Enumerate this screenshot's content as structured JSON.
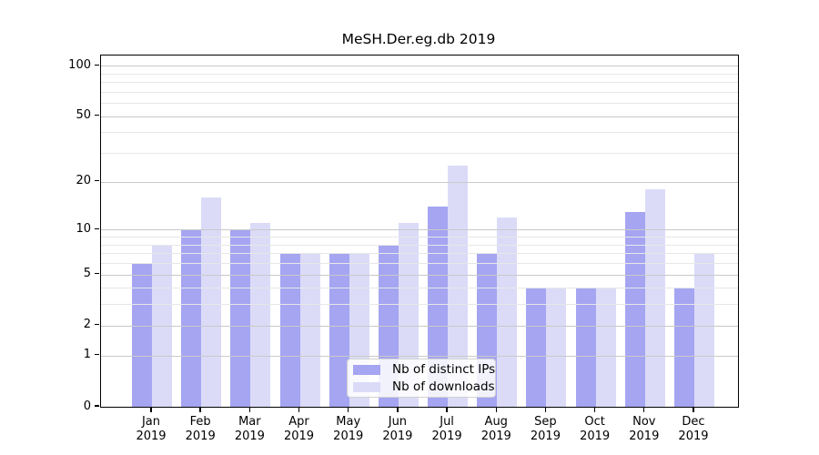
{
  "chart_data": {
    "type": "bar",
    "title": "MeSH.Der.eg.db 2019",
    "categories": [
      "Jan",
      "Feb",
      "Mar",
      "Apr",
      "May",
      "Jun",
      "Jul",
      "Aug",
      "Sep",
      "Oct",
      "Nov",
      "Dec"
    ],
    "category_year": "2019",
    "series": [
      {
        "name": "Nb of distinct IPs",
        "color": "#a5a5f2",
        "values": [
          6,
          10,
          10,
          7,
          7,
          8,
          14,
          7,
          4,
          4,
          13,
          4
        ]
      },
      {
        "name": "Nb of downloads",
        "color": "#dbdbf8",
        "values": [
          8,
          16,
          11,
          7,
          7,
          11,
          25,
          12,
          4,
          4,
          18,
          7
        ]
      }
    ],
    "y_axis": {
      "scale": "log1p",
      "ylim": [
        0,
        115
      ],
      "major_ticks": [
        100,
        50,
        20,
        10,
        5,
        2,
        1,
        0
      ],
      "minor_ticks": [
        90,
        80,
        70,
        60,
        40,
        30,
        9,
        8,
        7,
        6,
        4,
        3
      ]
    },
    "xlabel": "",
    "ylabel": "",
    "grid": {
      "on": true,
      "major_color": "#c9c9c9",
      "minor_color": "#e7e7e7"
    },
    "legend": {
      "position": "lower center",
      "entries": [
        "Nb of distinct IPs",
        "Nb of downloads"
      ]
    }
  }
}
